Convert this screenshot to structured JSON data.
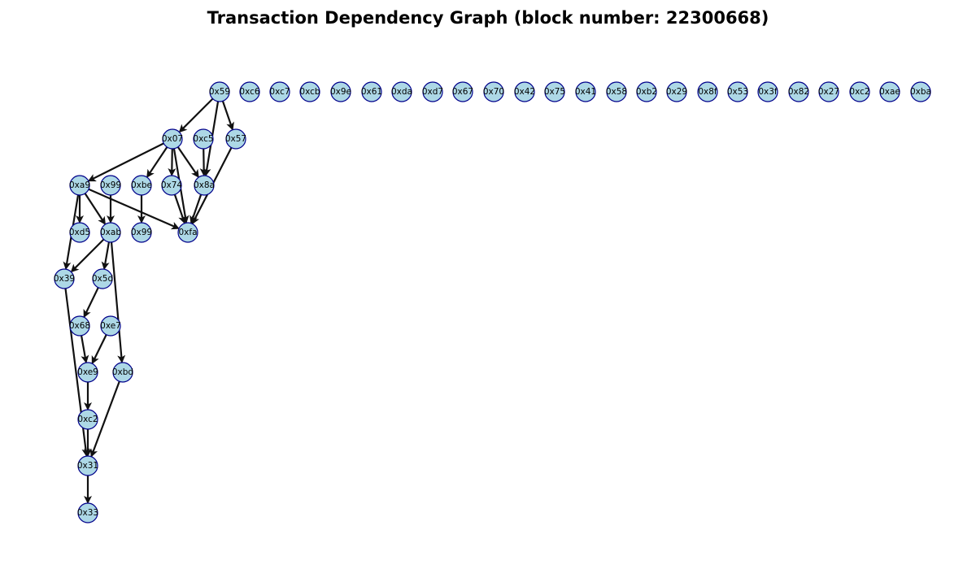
{
  "title": "Transaction Dependency Graph (block number: 22300668)",
  "colors": {
    "node_fill": "#add8e6",
    "node_stroke": "#00008b",
    "edge": "#111111"
  },
  "graph": {
    "nodes": [
      {
        "id": "n0x59",
        "label": "0x59"
      },
      {
        "id": "n0xc6",
        "label": "0xc6"
      },
      {
        "id": "n0xc7",
        "label": "0xc7"
      },
      {
        "id": "n0xcb",
        "label": "0xcb"
      },
      {
        "id": "n0x9e",
        "label": "0x9e"
      },
      {
        "id": "n0x61",
        "label": "0x61"
      },
      {
        "id": "n0xda",
        "label": "0xda"
      },
      {
        "id": "n0xd7",
        "label": "0xd7"
      },
      {
        "id": "n0x67",
        "label": "0x67"
      },
      {
        "id": "n0x70",
        "label": "0x70"
      },
      {
        "id": "n0x42",
        "label": "0x42"
      },
      {
        "id": "n0x75",
        "label": "0x75"
      },
      {
        "id": "n0x41",
        "label": "0x41"
      },
      {
        "id": "n0x58",
        "label": "0x58"
      },
      {
        "id": "n0xb2",
        "label": "0xb2"
      },
      {
        "id": "n0x29",
        "label": "0x29"
      },
      {
        "id": "n0x8f",
        "label": "0x8f"
      },
      {
        "id": "n0x53",
        "label": "0x53"
      },
      {
        "id": "n0x3f",
        "label": "0x3f"
      },
      {
        "id": "n0x82",
        "label": "0x82"
      },
      {
        "id": "n0x27",
        "label": "0x27"
      },
      {
        "id": "n0xc2a",
        "label": "0xc2"
      },
      {
        "id": "n0xae",
        "label": "0xae"
      },
      {
        "id": "n0xba",
        "label": "0xba"
      },
      {
        "id": "n0x07",
        "label": "0x07"
      },
      {
        "id": "n0xc5",
        "label": "0xc5"
      },
      {
        "id": "n0x57",
        "label": "0x57"
      },
      {
        "id": "n0xa9",
        "label": "0xa9"
      },
      {
        "id": "n0x99a",
        "label": "0x99"
      },
      {
        "id": "n0xbe",
        "label": "0xbe"
      },
      {
        "id": "n0x74",
        "label": "0x74"
      },
      {
        "id": "n0x8a",
        "label": "0x8a"
      },
      {
        "id": "n0xd5",
        "label": "0xd5"
      },
      {
        "id": "n0xab",
        "label": "0xab"
      },
      {
        "id": "n0x99b",
        "label": "0x99"
      },
      {
        "id": "n0xfa",
        "label": "0xfa"
      },
      {
        "id": "n0x39",
        "label": "0x39"
      },
      {
        "id": "n0x5d",
        "label": "0x5d"
      },
      {
        "id": "n0x68",
        "label": "0x68"
      },
      {
        "id": "n0xe7",
        "label": "0xe7"
      },
      {
        "id": "n0xe9",
        "label": "0xe9"
      },
      {
        "id": "n0xbd",
        "label": "0xbd"
      },
      {
        "id": "n0xc2b",
        "label": "0xc2"
      },
      {
        "id": "n0x31",
        "label": "0x31"
      },
      {
        "id": "n0x33",
        "label": "0x33"
      }
    ],
    "edges": [
      {
        "from": "n0x59",
        "to": "n0x07"
      },
      {
        "from": "n0x59",
        "to": "n0x57"
      },
      {
        "from": "n0x59",
        "to": "n0x8a"
      },
      {
        "from": "n0x07",
        "to": "n0xa9"
      },
      {
        "from": "n0x07",
        "to": "n0xbe"
      },
      {
        "from": "n0x07",
        "to": "n0x74"
      },
      {
        "from": "n0x07",
        "to": "n0x8a"
      },
      {
        "from": "n0x07",
        "to": "n0xfa"
      },
      {
        "from": "n0xc5",
        "to": "n0x8a"
      },
      {
        "from": "n0x57",
        "to": "n0xfa"
      },
      {
        "from": "n0x74",
        "to": "n0xfa"
      },
      {
        "from": "n0x8a",
        "to": "n0xfa"
      },
      {
        "from": "n0xa9",
        "to": "n0xd5"
      },
      {
        "from": "n0xa9",
        "to": "n0xab"
      },
      {
        "from": "n0xa9",
        "to": "n0x39"
      },
      {
        "from": "n0xa9",
        "to": "n0xfa"
      },
      {
        "from": "n0x99a",
        "to": "n0xab"
      },
      {
        "from": "n0xbe",
        "to": "n0x99b"
      },
      {
        "from": "n0xab",
        "to": "n0x39"
      },
      {
        "from": "n0xab",
        "to": "n0x5d"
      },
      {
        "from": "n0xab",
        "to": "n0xbd"
      },
      {
        "from": "n0x5d",
        "to": "n0x68"
      },
      {
        "from": "n0x68",
        "to": "n0xe9"
      },
      {
        "from": "n0xe7",
        "to": "n0xe9"
      },
      {
        "from": "n0xe9",
        "to": "n0xc2b"
      },
      {
        "from": "n0x39",
        "to": "n0x31"
      },
      {
        "from": "n0xc2b",
        "to": "n0x31"
      },
      {
        "from": "n0xbd",
        "to": "n0x31"
      },
      {
        "from": "n0x31",
        "to": "n0x33"
      }
    ]
  }
}
